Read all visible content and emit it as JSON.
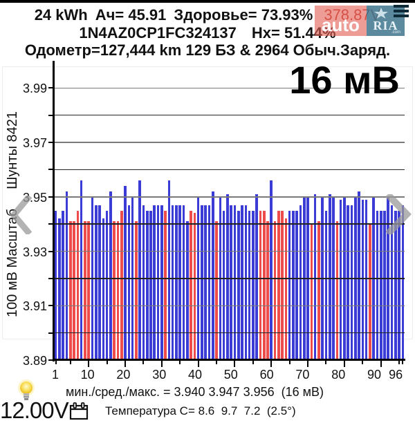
{
  "header": {
    "capacity": "24 kWh",
    "amp_hours": "Ач= 45.91",
    "health": "Здоровье= 73.93%",
    "pack_voltage": "378.87V",
    "vin": "1N4AZ0CP1FC324137",
    "hx": "Hx= 51.44%",
    "odometer_line": "Одометр=127,444 km 129 БЗ & 2964 Обыч.Заряд."
  },
  "delta_badge": "16 мВ",
  "watermark": {
    "left_text": "auto",
    "right_text": "RIA",
    "sub_text": ".com"
  },
  "chart_data": {
    "type": "bar",
    "title": "",
    "xlabel": "",
    "ylabel": "100 мВ Масштаб  Шунты 8421",
    "ylabel_parts": [
      "100 мВ Масштаб",
      "Шунты 8421"
    ],
    "ylim": [
      3.89,
      4.0
    ],
    "grid_step": 0.01,
    "grid": true,
    "y_ticks": [
      "3.99",
      "3.97",
      "3.95",
      "3.93",
      "3.91",
      "3.89"
    ],
    "x_ticks": [
      1,
      10,
      20,
      30,
      40,
      50,
      60,
      70,
      80,
      90,
      96
    ],
    "x_minor_step": 5,
    "cells": 96,
    "series": [
      {
        "name": "Cell voltage (V)",
        "values": [
          3.945,
          3.942,
          3.945,
          3.952,
          3.941,
          3.941,
          3.945,
          3.956,
          3.941,
          3.941,
          3.95,
          3.947,
          3.947,
          3.942,
          3.945,
          3.952,
          3.941,
          3.941,
          3.945,
          3.954,
          3.947,
          3.95,
          3.941,
          3.956,
          3.947,
          3.945,
          3.945,
          3.947,
          3.947,
          3.947,
          3.945,
          3.956,
          3.947,
          3.947,
          3.947,
          3.947,
          3.941,
          3.945,
          3.944,
          3.95,
          3.947,
          3.947,
          3.947,
          3.952,
          3.941,
          3.95,
          3.945,
          3.951,
          3.947,
          3.947,
          3.945,
          3.947,
          3.947,
          3.945,
          3.945,
          3.951,
          3.945,
          3.945,
          3.941,
          3.956,
          3.941,
          3.945,
          3.945,
          3.942,
          3.945,
          3.945,
          3.945,
          3.947,
          3.95,
          3.95,
          3.94,
          3.951,
          3.941,
          3.95,
          3.945,
          3.951,
          3.95,
          3.941,
          3.949,
          3.95,
          3.947,
          3.947,
          3.95,
          3.952,
          3.949,
          3.949,
          3.94,
          3.95,
          3.945,
          3.945,
          3.945,
          3.95,
          3.947,
          3.945,
          3.945,
          3.947
        ]
      }
    ],
    "highlighted_cells": [
      5,
      6,
      7,
      9,
      10,
      17,
      18,
      19,
      23,
      31,
      38,
      39,
      45,
      57,
      58,
      59,
      61,
      62,
      63,
      64,
      71,
      73,
      78,
      87
    ],
    "min": 3.94,
    "avg": 3.947,
    "max": 3.956,
    "spread_mv": 16
  },
  "footer": {
    "stats": "мин./сред./макс. = 3.940 3.947 3.956  (16 мВ)",
    "aux_voltage": "12.00V",
    "temperature": "Температура C= 8.6  9.7  7.2  (2.5°)"
  },
  "icons": {
    "bulb": "lightbulb-icon",
    "calendar": "calendar-icon",
    "menu": "menu-icon",
    "prev": "chevron-left-icon",
    "next": "chevron-right-icon"
  },
  "colors": {
    "bar_normal": "#3b3bd6",
    "bar_highlight": "#ee4b4b",
    "grid_major": "#7a7a7a",
    "grid_minor": "#222222",
    "pack_voltage": "#c0392b"
  }
}
